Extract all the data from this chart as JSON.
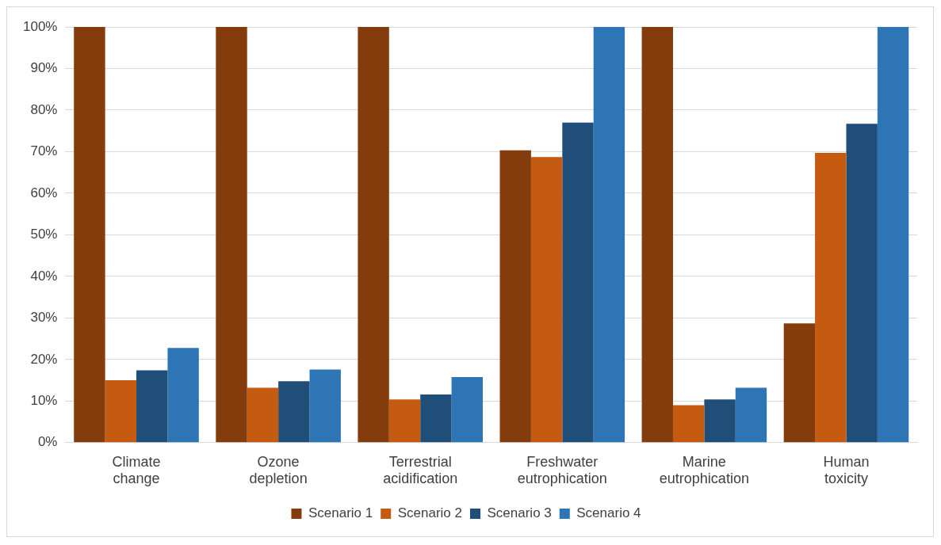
{
  "chart_data": {
    "type": "bar",
    "categories": [
      "Climate change",
      "Ozone depletion",
      "Terrestrial acidification",
      "Freshwater eutrophication",
      "Marine eutrophication",
      "Human toxicity"
    ],
    "series": [
      {
        "name": "Scenario 1",
        "color": "#843c0c",
        "values": [
          100,
          100,
          100,
          70.3,
          100,
          28.7
        ]
      },
      {
        "name": "Scenario 2",
        "color": "#c55a11",
        "values": [
          15,
          13.2,
          10.4,
          68.7,
          9,
          69.7
        ]
      },
      {
        "name": "Scenario 3",
        "color": "#1f4e79",
        "values": [
          17.4,
          14.8,
          11.6,
          77,
          10.4,
          76.7
        ]
      },
      {
        "name": "Scenario 4",
        "color": "#2e75b6",
        "values": [
          22.8,
          17.6,
          15.8,
          100,
          13.2,
          100
        ]
      }
    ],
    "ylim": [
      0,
      100
    ],
    "yticks": [
      {
        "value": 0,
        "label": "0%"
      },
      {
        "value": 10,
        "label": "10%"
      },
      {
        "value": 20,
        "label": "20%"
      },
      {
        "value": 30,
        "label": "30%"
      },
      {
        "value": 40,
        "label": "40%"
      },
      {
        "value": 50,
        "label": "50%"
      },
      {
        "value": 60,
        "label": "60%"
      },
      {
        "value": 70,
        "label": "70%"
      },
      {
        "value": 80,
        "label": "80%"
      },
      {
        "value": 90,
        "label": "90%"
      },
      {
        "value": 100,
        "label": "100%"
      }
    ],
    "grid": "y",
    "legend": "bottom"
  }
}
